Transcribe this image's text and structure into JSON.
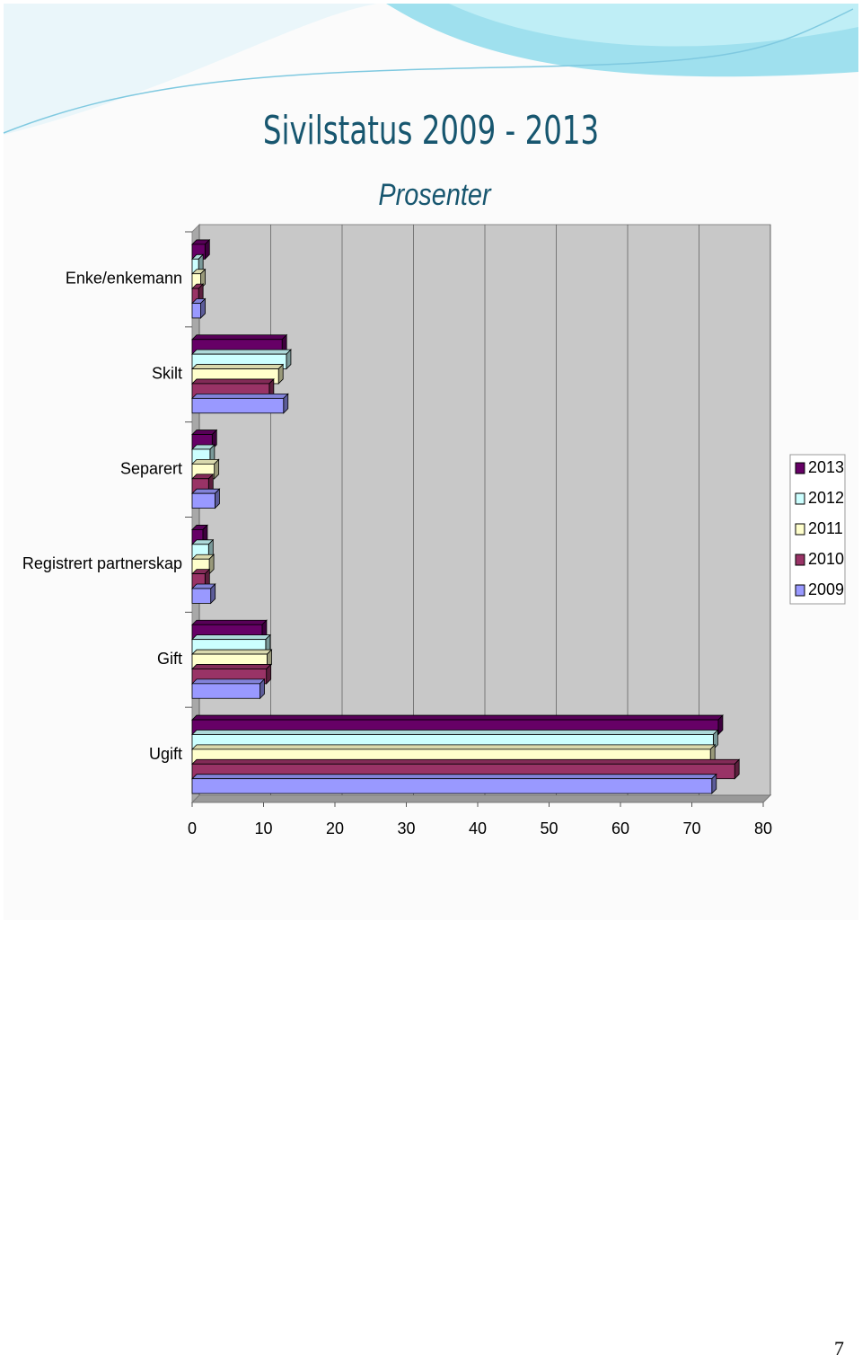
{
  "chart_data": {
    "type": "bar3d-horizontal",
    "title": "Sivilstatus 2009 - 2013",
    "subtitle": "Prosenter",
    "categories": [
      "Enke/enkemann",
      "Skilt",
      "Separert",
      "Registrert partnerskap",
      "Gift",
      "Ugift"
    ],
    "series": [
      {
        "name": "2013",
        "color": "#660066",
        "values": [
          1.8,
          12.6,
          2.8,
          1.5,
          9.8,
          73.7
        ]
      },
      {
        "name": "2012",
        "color": "#ccffff",
        "values": [
          0.9,
          13.2,
          2.5,
          2.3,
          10.3,
          73.0
        ]
      },
      {
        "name": "2011",
        "color": "#ffffcc",
        "values": [
          1.2,
          12.1,
          3.1,
          2.4,
          10.5,
          72.6
        ]
      },
      {
        "name": "2010",
        "color": "#993366",
        "values": [
          0.9,
          10.8,
          2.3,
          1.8,
          10.4,
          76.0
        ]
      },
      {
        "name": "2009",
        "color": "#9999ff",
        "values": [
          1.2,
          12.8,
          3.2,
          2.6,
          9.5,
          72.8
        ]
      }
    ],
    "xlim": [
      0,
      80
    ],
    "xticks": [
      0,
      10,
      20,
      30,
      40,
      50,
      60,
      70,
      80
    ],
    "grid": true,
    "legend": "right"
  },
  "page": {
    "number": "7"
  }
}
